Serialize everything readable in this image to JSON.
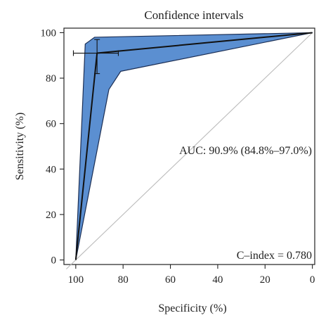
{
  "chart_data": {
    "type": "line",
    "title": "Confidence intervals",
    "xlabel": "Specificity (%)",
    "ylabel": "Sensitivity (%)",
    "x_reversed": true,
    "xlim": [
      105,
      -1
    ],
    "ylim": [
      -2,
      102
    ],
    "x_ticks": [
      "100",
      "80",
      "60",
      "40",
      "20",
      "0"
    ],
    "y_ticks": [
      "0",
      "20",
      "40",
      "60",
      "80",
      "100"
    ],
    "x_tick_values": [
      100,
      80,
      60,
      40,
      20,
      0
    ],
    "y_tick_values": [
      0,
      20,
      40,
      60,
      80,
      100
    ],
    "reference_line": {
      "x": [
        100,
        0
      ],
      "y": [
        0,
        100
      ],
      "color": "#bbbbbb"
    },
    "roc_curve": {
      "x": [
        100,
        91,
        0
      ],
      "y": [
        0,
        91,
        100
      ],
      "color": "#111111"
    },
    "confidence_band": {
      "upper": {
        "x": [
          100,
          96,
          92,
          0
        ],
        "y": [
          0,
          95,
          98,
          100
        ]
      },
      "lower": {
        "x": [
          0,
          81,
          86,
          100
        ],
        "y": [
          100,
          83,
          75,
          0
        ]
      },
      "fill": "#5b8fd1",
      "stroke": "#1c2f55"
    },
    "error_bars": {
      "point": {
        "x": 91,
        "y": 91
      },
      "x_range": [
        101,
        82
      ],
      "y_range": [
        82,
        97
      ]
    },
    "annotations": [
      {
        "id": "auc",
        "text": "AUC: 90.9% (84.8%–97.0%)"
      },
      {
        "id": "cindex",
        "text": "C–index = 0.780"
      }
    ],
    "grid": false,
    "legend": "none"
  }
}
